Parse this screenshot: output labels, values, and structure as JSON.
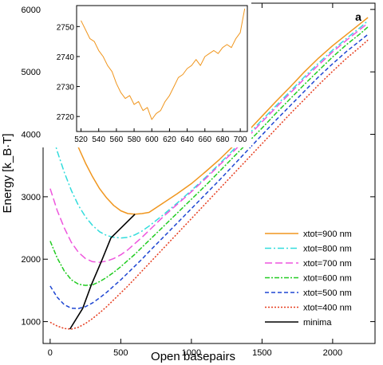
{
  "chart_data": [
    {
      "type": "line",
      "panel_label": "a",
      "xlabel": "Open basepairs",
      "ylabel": "Energy [k_B·T]",
      "xlim": [
        -50,
        2300
      ],
      "ylim": [
        650,
        6100
      ],
      "xticks": [
        0,
        500,
        1000,
        1500,
        2000
      ],
      "yticks": [
        1000,
        2000,
        3000,
        4000,
        5000,
        6000
      ],
      "grid": false,
      "legend_position": "bottom-right",
      "series": [
        {
          "name": "xtot=900 nm",
          "color": "#f0961e",
          "dash": "solid",
          "x": [
            0,
            50,
            100,
            150,
            200,
            250,
            300,
            350,
            400,
            450,
            500,
            550,
            600,
            650,
            700,
            800,
            900,
            1000,
            1100,
            1200,
            1300,
            1400,
            1500,
            1600,
            1700,
            1800,
            1900,
            2000,
            2100,
            2200,
            2250
          ],
          "y": [
            5200,
            4790,
            4410,
            4080,
            3790,
            3540,
            3320,
            3130,
            2980,
            2860,
            2775,
            2730,
            2720,
            2730,
            2750,
            2900,
            3050,
            3210,
            3400,
            3600,
            3820,
            4050,
            4290,
            4530,
            4760,
            5000,
            5220,
            5420,
            5600,
            5780,
            5870
          ]
        },
        {
          "name": "xtot=800 nm",
          "color": "#32dcdc",
          "dash": "8,3,2,3",
          "x": [
            0,
            50,
            100,
            150,
            200,
            250,
            300,
            350,
            400,
            450,
            500,
            550,
            600,
            650,
            700,
            800,
            900,
            1000,
            1100,
            1200,
            1300,
            1400,
            1500,
            1600,
            1700,
            1800,
            1900,
            2000,
            2100,
            2200,
            2250
          ],
          "y": [
            4120,
            3730,
            3390,
            3100,
            2860,
            2680,
            2540,
            2440,
            2380,
            2350,
            2340,
            2350,
            2390,
            2450,
            2530,
            2710,
            2900,
            3100,
            3310,
            3530,
            3760,
            3990,
            4230,
            4460,
            4690,
            4920,
            5140,
            5350,
            5540,
            5720,
            5820
          ]
        },
        {
          "name": "xtot=700 nm",
          "color": "#ee55dd",
          "dash": "9,4",
          "x": [
            0,
            50,
            100,
            150,
            200,
            250,
            300,
            350,
            400,
            450,
            500,
            550,
            600,
            650,
            700,
            800,
            900,
            1000,
            1100,
            1200,
            1300,
            1400,
            1500,
            1600,
            1700,
            1800,
            1900,
            2000,
            2100,
            2200,
            2250
          ],
          "y": [
            3130,
            2780,
            2500,
            2270,
            2110,
            2010,
            1960,
            1950,
            1970,
            2010,
            2070,
            2150,
            2250,
            2350,
            2460,
            2680,
            2880,
            3080,
            3290,
            3510,
            3730,
            3960,
            4200,
            4430,
            4660,
            4890,
            5110,
            5320,
            5510,
            5690,
            5780
          ]
        },
        {
          "name": "xtot=600 nm",
          "color": "#22cc22",
          "dash": "6,2,2,2",
          "x": [
            0,
            50,
            100,
            150,
            200,
            250,
            300,
            350,
            400,
            450,
            500,
            550,
            600,
            650,
            700,
            800,
            900,
            1000,
            1100,
            1200,
            1300,
            1400,
            1500,
            1600,
            1700,
            1800,
            1900,
            2000,
            2100,
            2200,
            2250
          ],
          "y": [
            2290,
            2020,
            1810,
            1670,
            1600,
            1580,
            1590,
            1640,
            1710,
            1790,
            1880,
            1980,
            2080,
            2190,
            2300,
            2520,
            2740,
            2960,
            3180,
            3410,
            3640,
            3870,
            4100,
            4340,
            4570,
            4800,
            5020,
            5240,
            5440,
            5620,
            5720
          ]
        },
        {
          "name": "xtot=500 nm",
          "color": "#1e46d2",
          "dash": "5,3",
          "x": [
            0,
            50,
            100,
            150,
            200,
            250,
            300,
            350,
            400,
            450,
            500,
            550,
            600,
            650,
            700,
            800,
            900,
            1000,
            1100,
            1200,
            1300,
            1400,
            1500,
            1600,
            1700,
            1800,
            1900,
            2000,
            2100,
            2200,
            2250
          ],
          "y": [
            1570,
            1390,
            1270,
            1215,
            1210,
            1240,
            1300,
            1380,
            1470,
            1570,
            1670,
            1780,
            1890,
            2000,
            2120,
            2350,
            2580,
            2810,
            3040,
            3270,
            3510,
            3750,
            3990,
            4230,
            4460,
            4690,
            4920,
            5130,
            5330,
            5510,
            5600
          ]
        },
        {
          "name": "xtot=400 nm",
          "color": "#e63c1e",
          "dash": "2,2",
          "x": [
            0,
            50,
            100,
            150,
            200,
            250,
            300,
            350,
            400,
            450,
            500,
            550,
            600,
            650,
            700,
            800,
            900,
            1000,
            1100,
            1200,
            1300,
            1400,
            1500,
            1600,
            1700,
            1800,
            1900,
            2000,
            2100,
            2200,
            2250
          ],
          "y": [
            990,
            930,
            890,
            880,
            910,
            970,
            1050,
            1140,
            1240,
            1350,
            1460,
            1570,
            1690,
            1810,
            1930,
            2170,
            2410,
            2650,
            2890,
            3130,
            3370,
            3610,
            3850,
            4090,
            4330,
            4560,
            4790,
            5010,
            5220,
            5410,
            5510
          ]
        },
        {
          "name": "minima",
          "color": "#000000",
          "dash": "solid",
          "x": [
            140,
            230,
            290,
            360,
            430,
            600
          ],
          "y": [
            880,
            1210,
            1580,
            1950,
            2340,
            2720
          ]
        }
      ]
    },
    {
      "type": "line",
      "role": "inset",
      "xlim": [
        515,
        708
      ],
      "ylim": [
        2715,
        2757
      ],
      "xticks": [
        520,
        540,
        560,
        580,
        600,
        620,
        640,
        660,
        680,
        700
      ],
      "yticks": [
        2720,
        2730,
        2740,
        2750
      ],
      "series": [
        {
          "color": "#f0961e",
          "x": [
            520,
            525,
            530,
            535,
            540,
            545,
            550,
            555,
            560,
            565,
            570,
            575,
            580,
            585,
            590,
            595,
            600,
            605,
            610,
            615,
            620,
            625,
            630,
            635,
            640,
            645,
            650,
            655,
            660,
            665,
            670,
            675,
            680,
            685,
            690,
            695,
            700,
            705
          ],
          "y": [
            2752,
            2749,
            2746,
            2745,
            2742,
            2740,
            2737,
            2735,
            2731,
            2728,
            2726,
            2727,
            2724,
            2725,
            2722,
            2723,
            2719,
            2721,
            2722,
            2725,
            2727,
            2730,
            2733,
            2734,
            2736,
            2737,
            2739,
            2737,
            2740,
            2741,
            2742,
            2741,
            2743,
            2744,
            2743,
            2746,
            2748,
            2756
          ]
        }
      ]
    }
  ]
}
